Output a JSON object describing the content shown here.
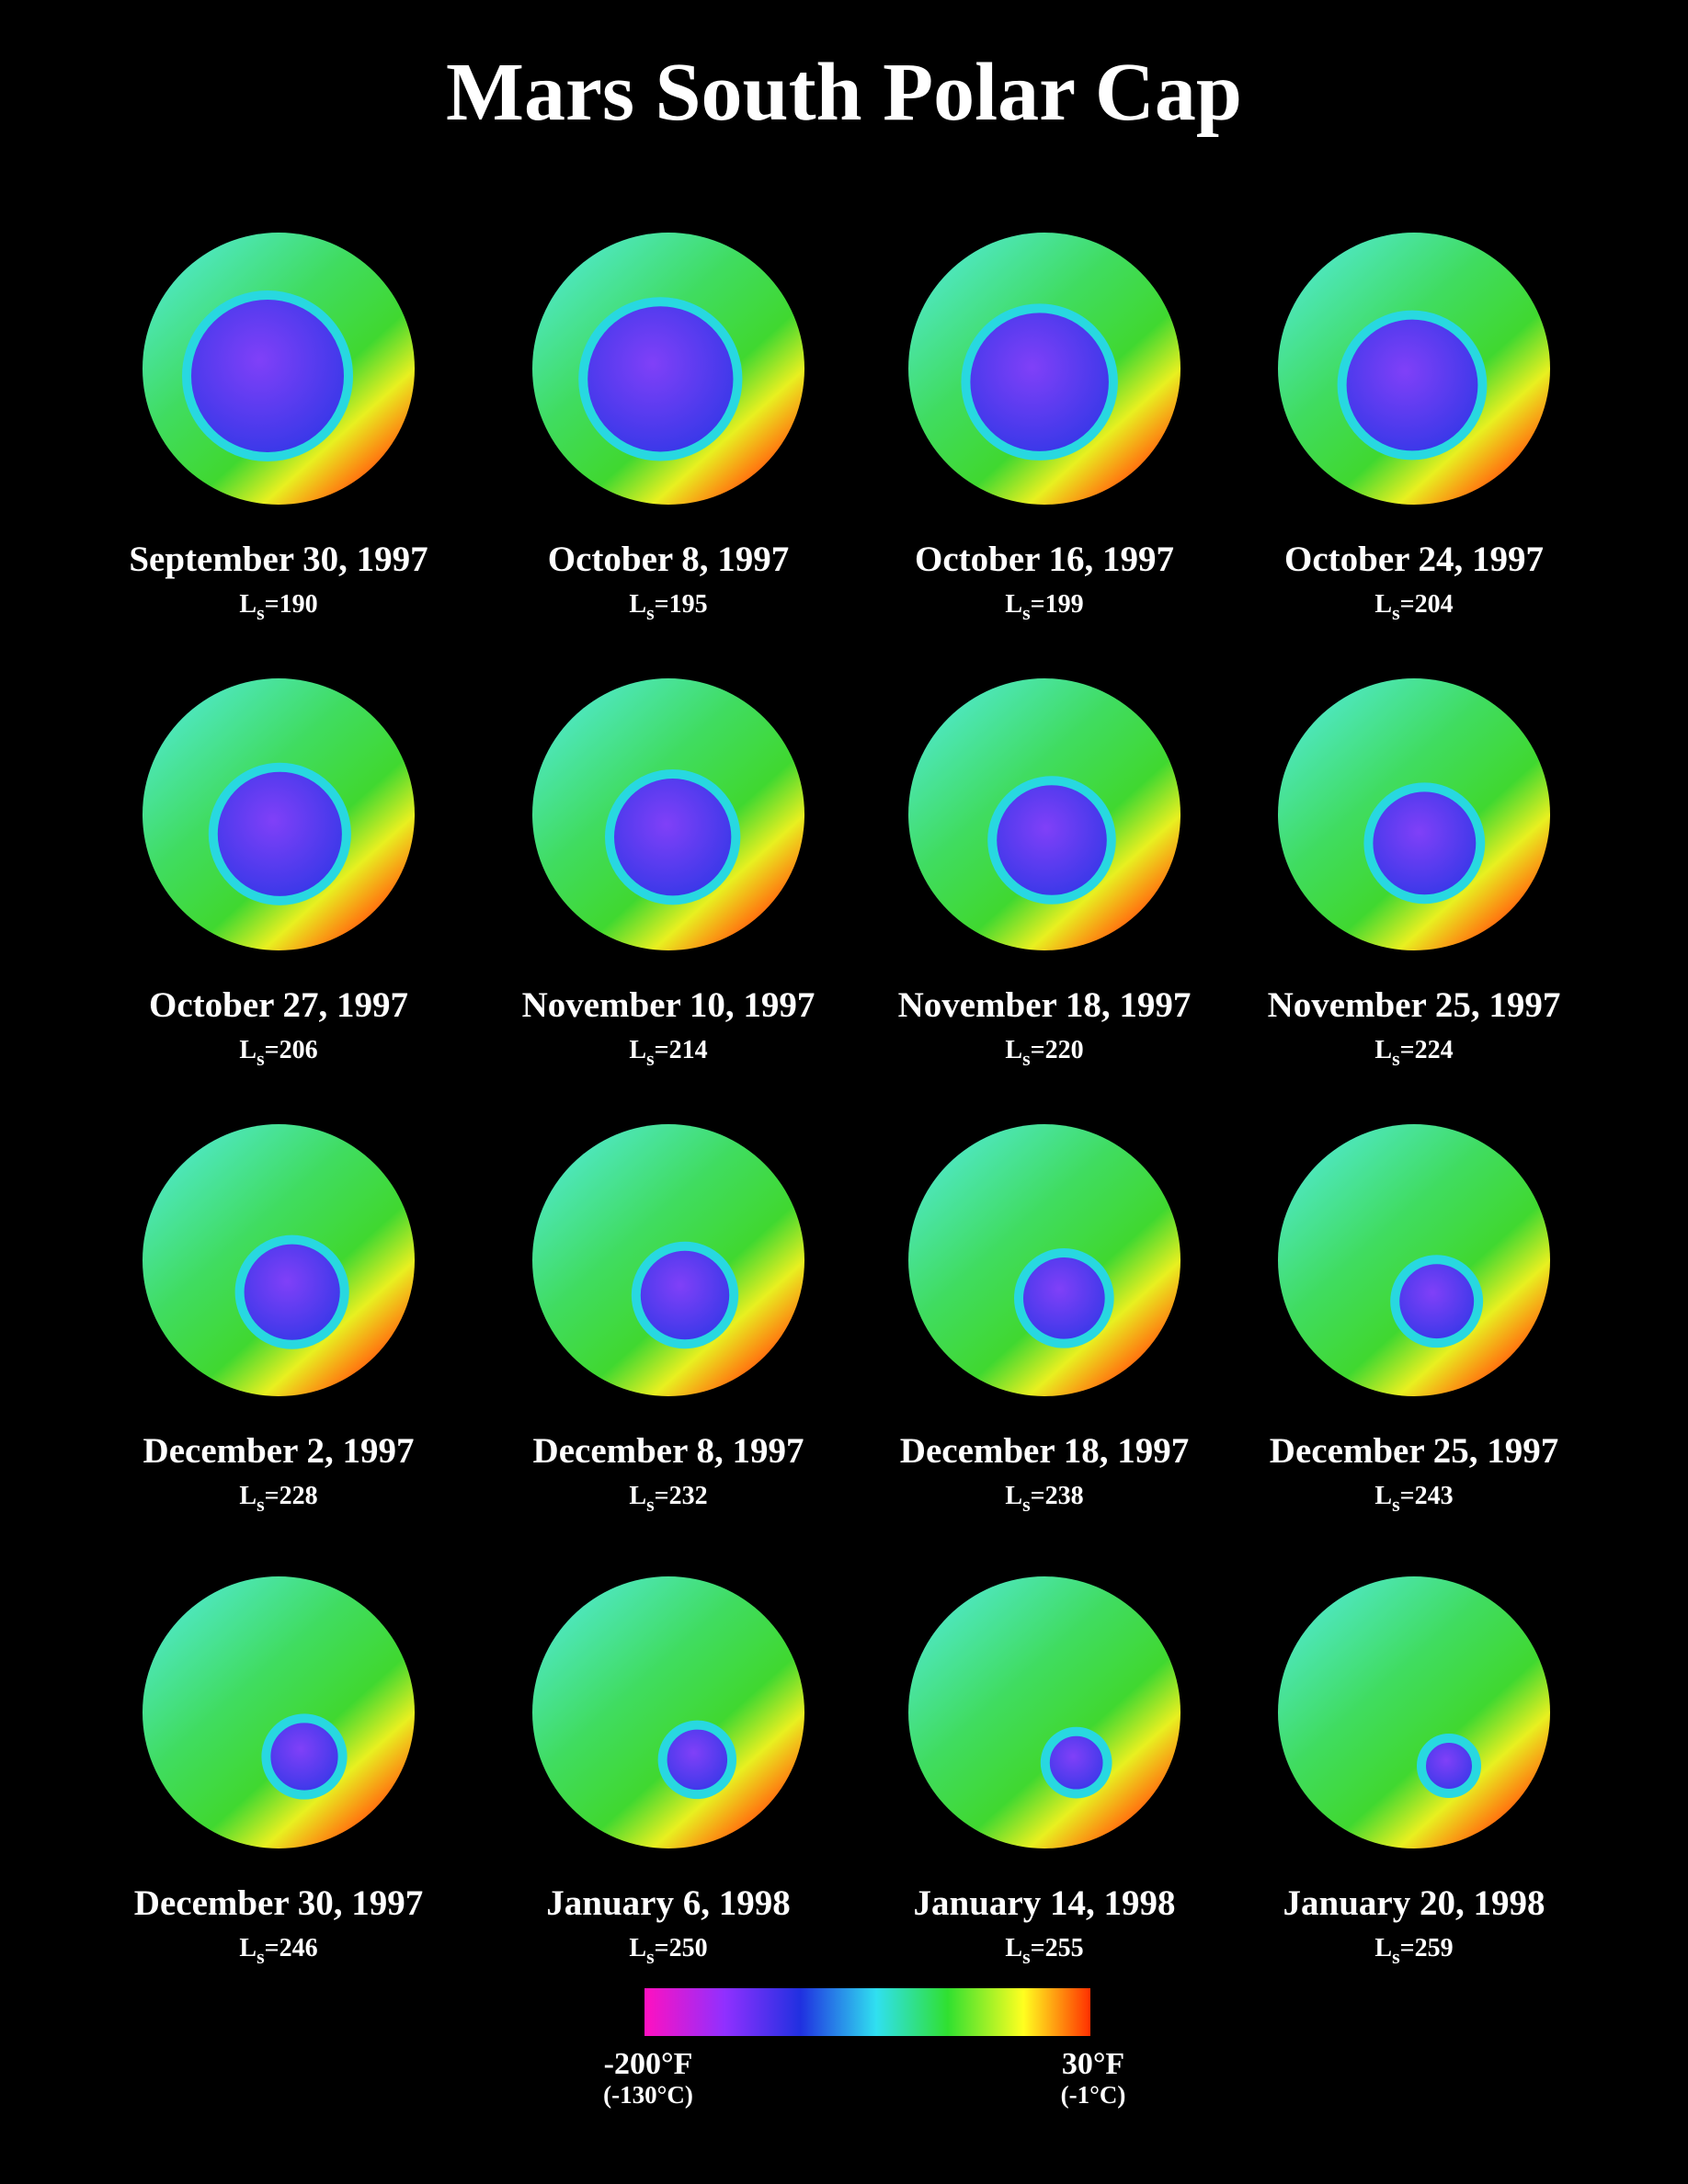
{
  "title": "Mars South Polar Cap",
  "ls_symbol": "L",
  "ls_subscript": "s",
  "ls_equals": "=",
  "panels": [
    {
      "date": "September 30, 1997",
      "ls": 190
    },
    {
      "date": "October 8, 1997",
      "ls": 195
    },
    {
      "date": "October 16, 1997",
      "ls": 199
    },
    {
      "date": "October 24, 1997",
      "ls": 204
    },
    {
      "date": "October 27, 1997",
      "ls": 206
    },
    {
      "date": "November 10, 1997",
      "ls": 214
    },
    {
      "date": "November 18, 1997",
      "ls": 220
    },
    {
      "date": "November 25, 1997",
      "ls": 224
    },
    {
      "date": "December 2, 1997",
      "ls": 228
    },
    {
      "date": "December 8, 1997",
      "ls": 232
    },
    {
      "date": "December 18, 1997",
      "ls": 238
    },
    {
      "date": "December 25, 1997",
      "ls": 243
    },
    {
      "date": "December 30, 1997",
      "ls": 246
    },
    {
      "date": "January 6, 1998",
      "ls": 250
    },
    {
      "date": "January 14, 1998",
      "ls": 255
    },
    {
      "date": "January 20, 1998",
      "ls": 259
    }
  ],
  "colorbar": {
    "low_f": "-200°F",
    "low_c": "(-130°C)",
    "high_f": "30°F",
    "high_c": "(-1°C)"
  }
}
